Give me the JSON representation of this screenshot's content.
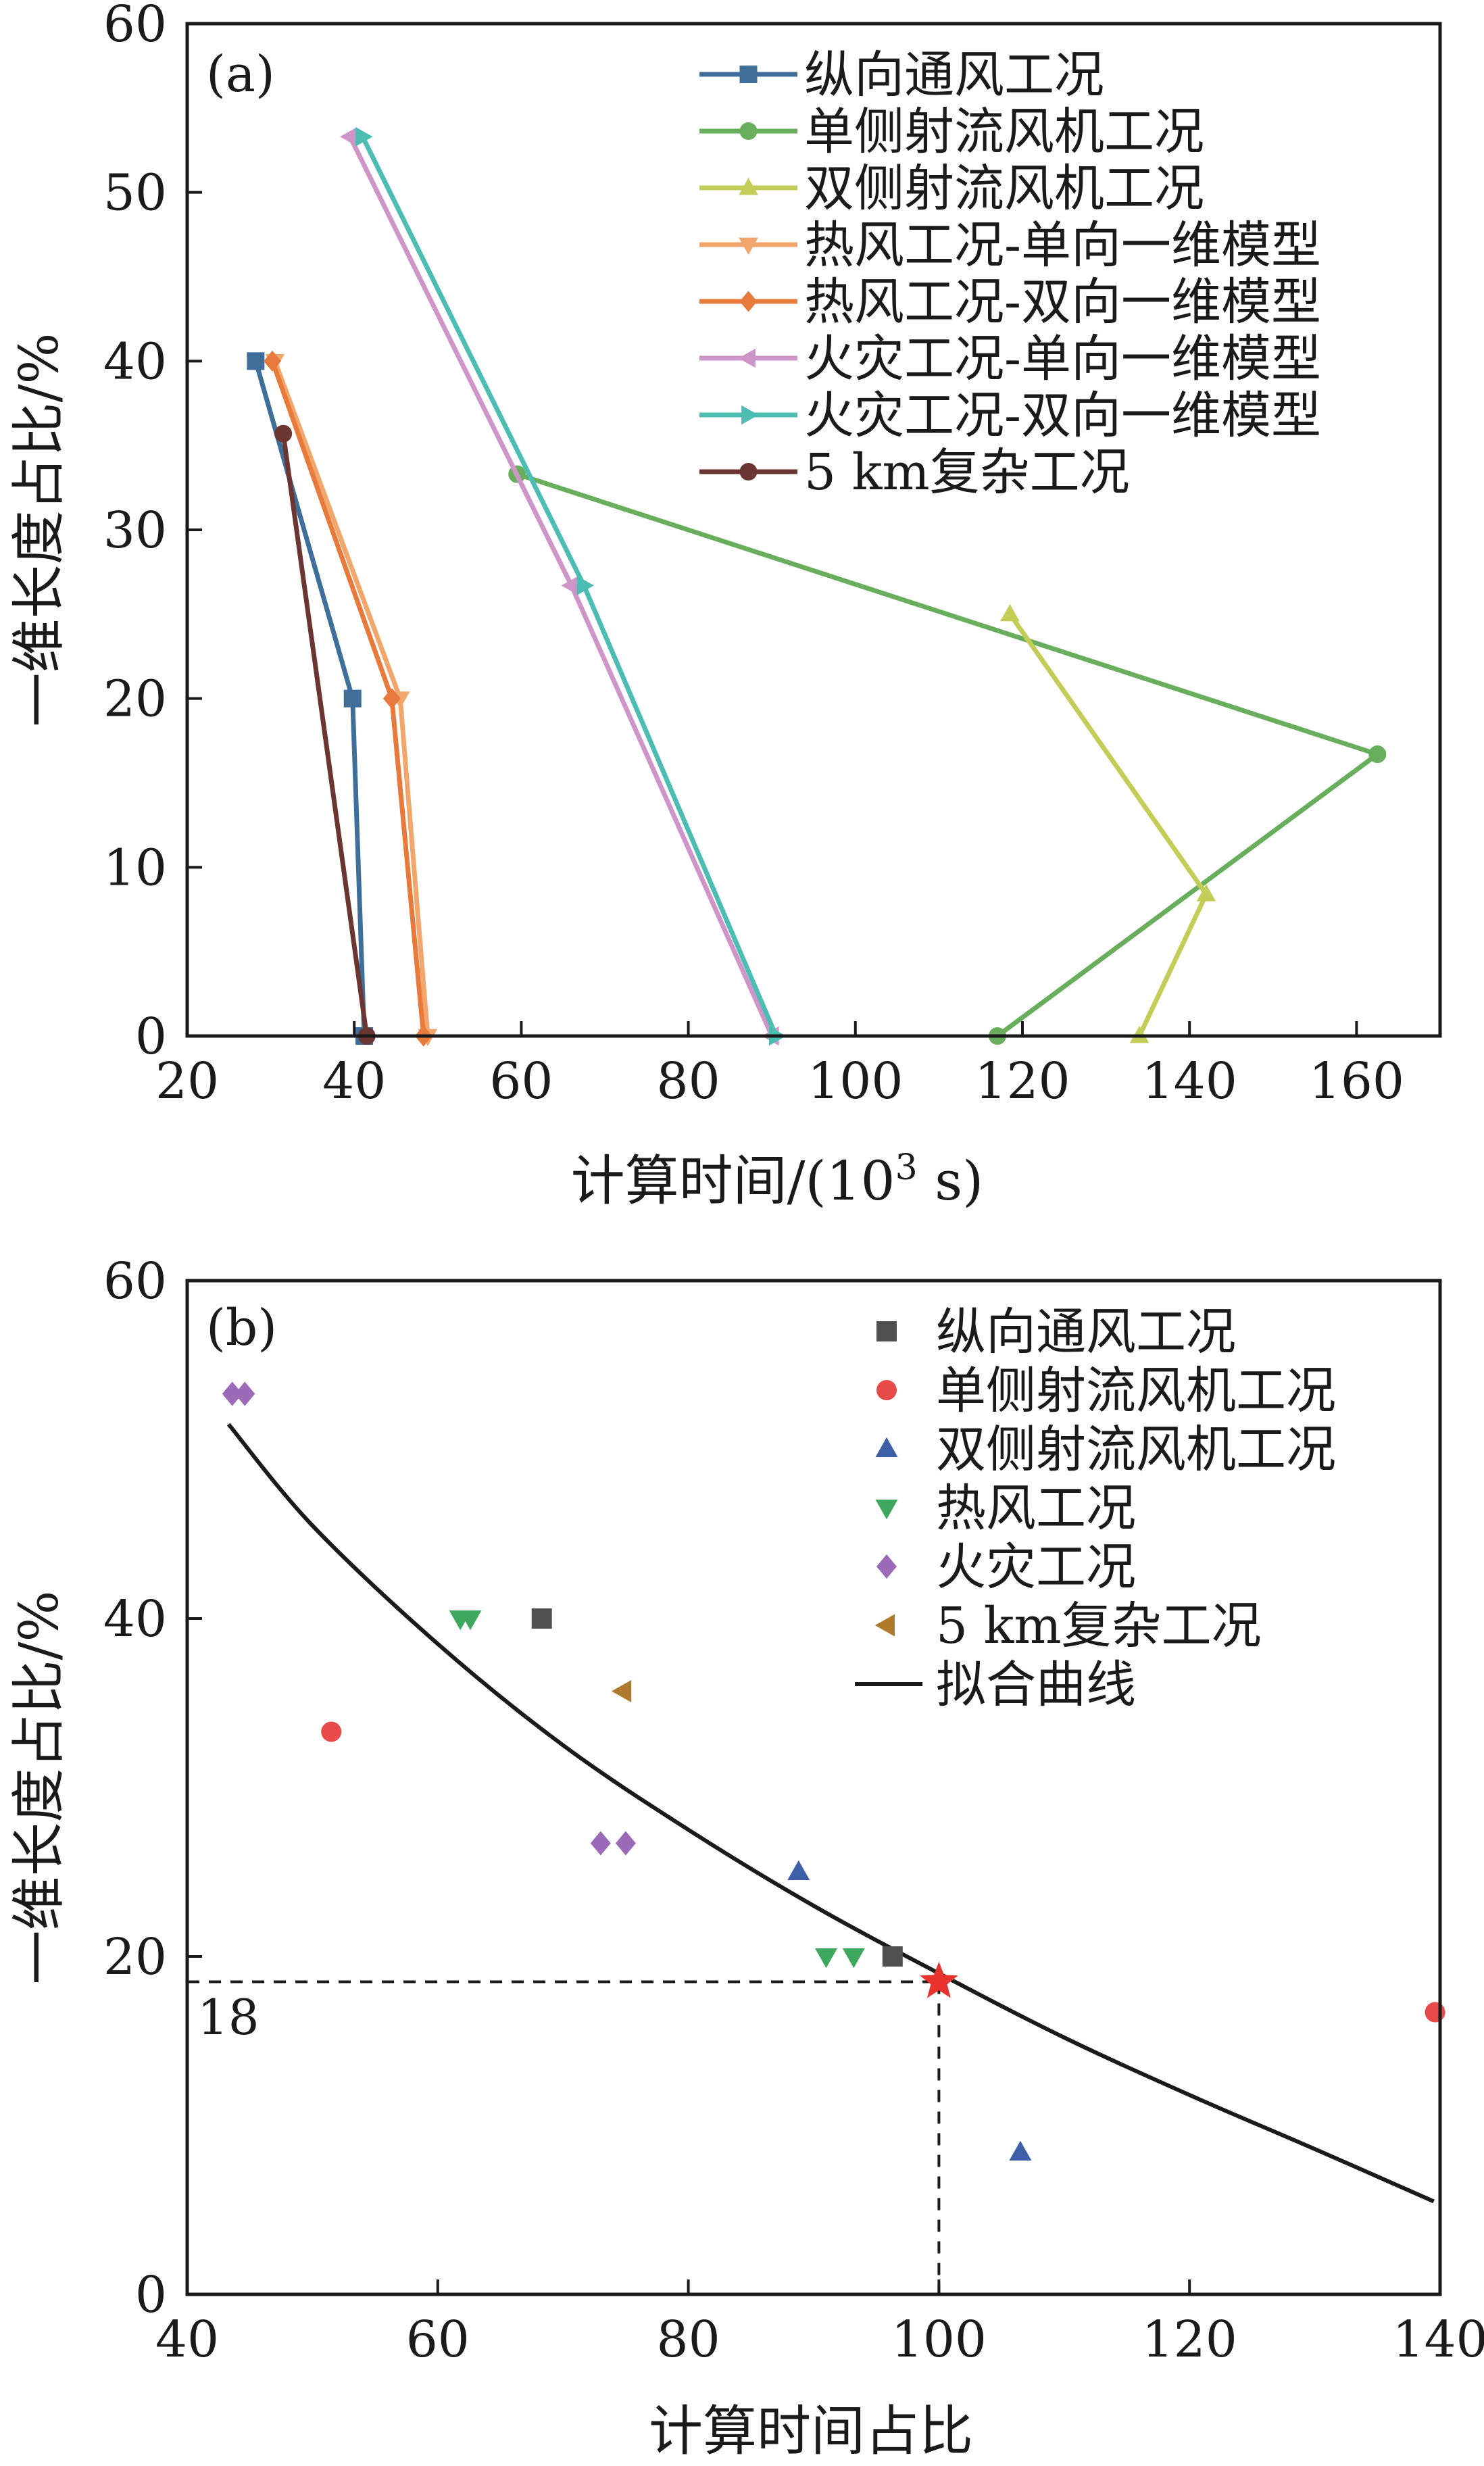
{
  "chart_data": [
    {
      "id": "a",
      "type": "line",
      "panel_label": "(a)",
      "xlabel": "计算时间/(10",
      "xlabel_sup": "3",
      "xlabel_tail": " s)",
      "ylabel": "一维长度占比/%",
      "xlim": [
        20,
        170
      ],
      "ylim": [
        0,
        60
      ],
      "xticks": [
        20,
        40,
        60,
        80,
        100,
        120,
        140,
        160
      ],
      "yticks": [
        0,
        10,
        20,
        30,
        40,
        50,
        60
      ],
      "legend_position": "top-right",
      "series": [
        {
          "name": "纵向通风工况",
          "color": "#3f6e9a",
          "marker": "square",
          "points": [
            [
              28.2,
              40
            ],
            [
              39.8,
              20
            ],
            [
              41.2,
              0
            ]
          ]
        },
        {
          "name": "单侧射流风机工况",
          "color": "#69ae5c",
          "marker": "circle",
          "points": [
            [
              59.5,
              33.3
            ],
            [
              162.5,
              16.7
            ],
            [
              117,
              0
            ]
          ]
        },
        {
          "name": "双侧射流风机工况",
          "color": "#c4cd57",
          "marker": "triangle-up",
          "points": [
            [
              118.5,
              25
            ],
            [
              142,
              8.4
            ],
            [
              134,
              0
            ]
          ]
        },
        {
          "name": "热风工况-单向一维模型",
          "color": "#f3a66b",
          "marker": "triangle-down",
          "points": [
            [
              30.5,
              40
            ],
            [
              45.5,
              20
            ],
            [
              48.8,
              0
            ]
          ]
        },
        {
          "name": "热风工况-双向一维模型",
          "color": "#e87a3b",
          "marker": "diamond",
          "points": [
            [
              30.2,
              40
            ],
            [
              44.5,
              20
            ],
            [
              48.3,
              0
            ]
          ]
        },
        {
          "name": "火灾工况-单向一维模型",
          "color": "#cf95c8",
          "marker": "triangle-left",
          "points": [
            [
              39.5,
              53.3
            ],
            [
              66,
              26.7
            ],
            [
              90,
              0
            ]
          ]
        },
        {
          "name": "火灾工况-双向一维模型",
          "color": "#4cbdb3",
          "marker": "triangle-right",
          "points": [
            [
              41,
              53.3
            ],
            [
              67.5,
              26.7
            ],
            [
              90.5,
              0
            ]
          ]
        },
        {
          "name": "5 km复杂工况",
          "color": "#6b3632",
          "marker": "circle",
          "points": [
            [
              31.5,
              35.7
            ],
            [
              41.5,
              0
            ]
          ]
        }
      ]
    },
    {
      "id": "b",
      "type": "scatter",
      "panel_label": "(b)",
      "xlabel": "计算时间占比",
      "ylabel": "一维长度占比/%",
      "xlim": [
        40,
        140
      ],
      "ylim": [
        0,
        60
      ],
      "xticks": [
        40,
        60,
        80,
        100,
        120,
        140
      ],
      "yticks": [
        0,
        20,
        40,
        60
      ],
      "legend_position": "top-right",
      "series": [
        {
          "name": "纵向通风工况",
          "color": "#505050",
          "marker": "square",
          "points": [
            [
              68.3,
              40
            ],
            [
              96.3,
              20
            ]
          ]
        },
        {
          "name": "单侧射流风机工况",
          "color": "#e84a4a",
          "marker": "circle",
          "points": [
            [
              51.5,
              33.3
            ],
            [
              139.6,
              16.7
            ]
          ]
        },
        {
          "name": "双侧射流风机工况",
          "color": "#3d5fa8",
          "marker": "triangle-up",
          "points": [
            [
              88.8,
              25
            ],
            [
              106.5,
              8.4
            ]
          ]
        },
        {
          "name": "热风工况",
          "color": "#3ea85e",
          "marker": "triangle-down",
          "points": [
            [
              61.8,
              40
            ],
            [
              62.6,
              40
            ],
            [
              91,
              20
            ],
            [
              93.2,
              20
            ]
          ]
        },
        {
          "name": "火灾工况",
          "color": "#9b6ab8",
          "marker": "diamond",
          "points": [
            [
              43.6,
              53.3
            ],
            [
              44.6,
              53.3
            ],
            [
              73,
              26.7
            ],
            [
              75,
              26.7
            ]
          ]
        },
        {
          "name": "5 km复杂工况",
          "color": "#b07a2c",
          "marker": "triangle-left",
          "points": [
            [
              74.8,
              35.7
            ]
          ]
        }
      ],
      "fit_curve": {
        "name": "拟合曲线",
        "color": "#1a1a1a",
        "points": [
          [
            43.3,
            51.5
          ],
          [
            50,
            45.5
          ],
          [
            60,
            38.5
          ],
          [
            70,
            32.5
          ],
          [
            80,
            27.5
          ],
          [
            90,
            23
          ],
          [
            100,
            19
          ],
          [
            110,
            15.2
          ],
          [
            120,
            11.8
          ],
          [
            130,
            8.6
          ],
          [
            139.5,
            5.5
          ]
        ]
      },
      "highlight": {
        "x": 100,
        "y": 18.5,
        "color": "#e8322e",
        "marker": "star"
      },
      "annotation_label": "18"
    }
  ]
}
